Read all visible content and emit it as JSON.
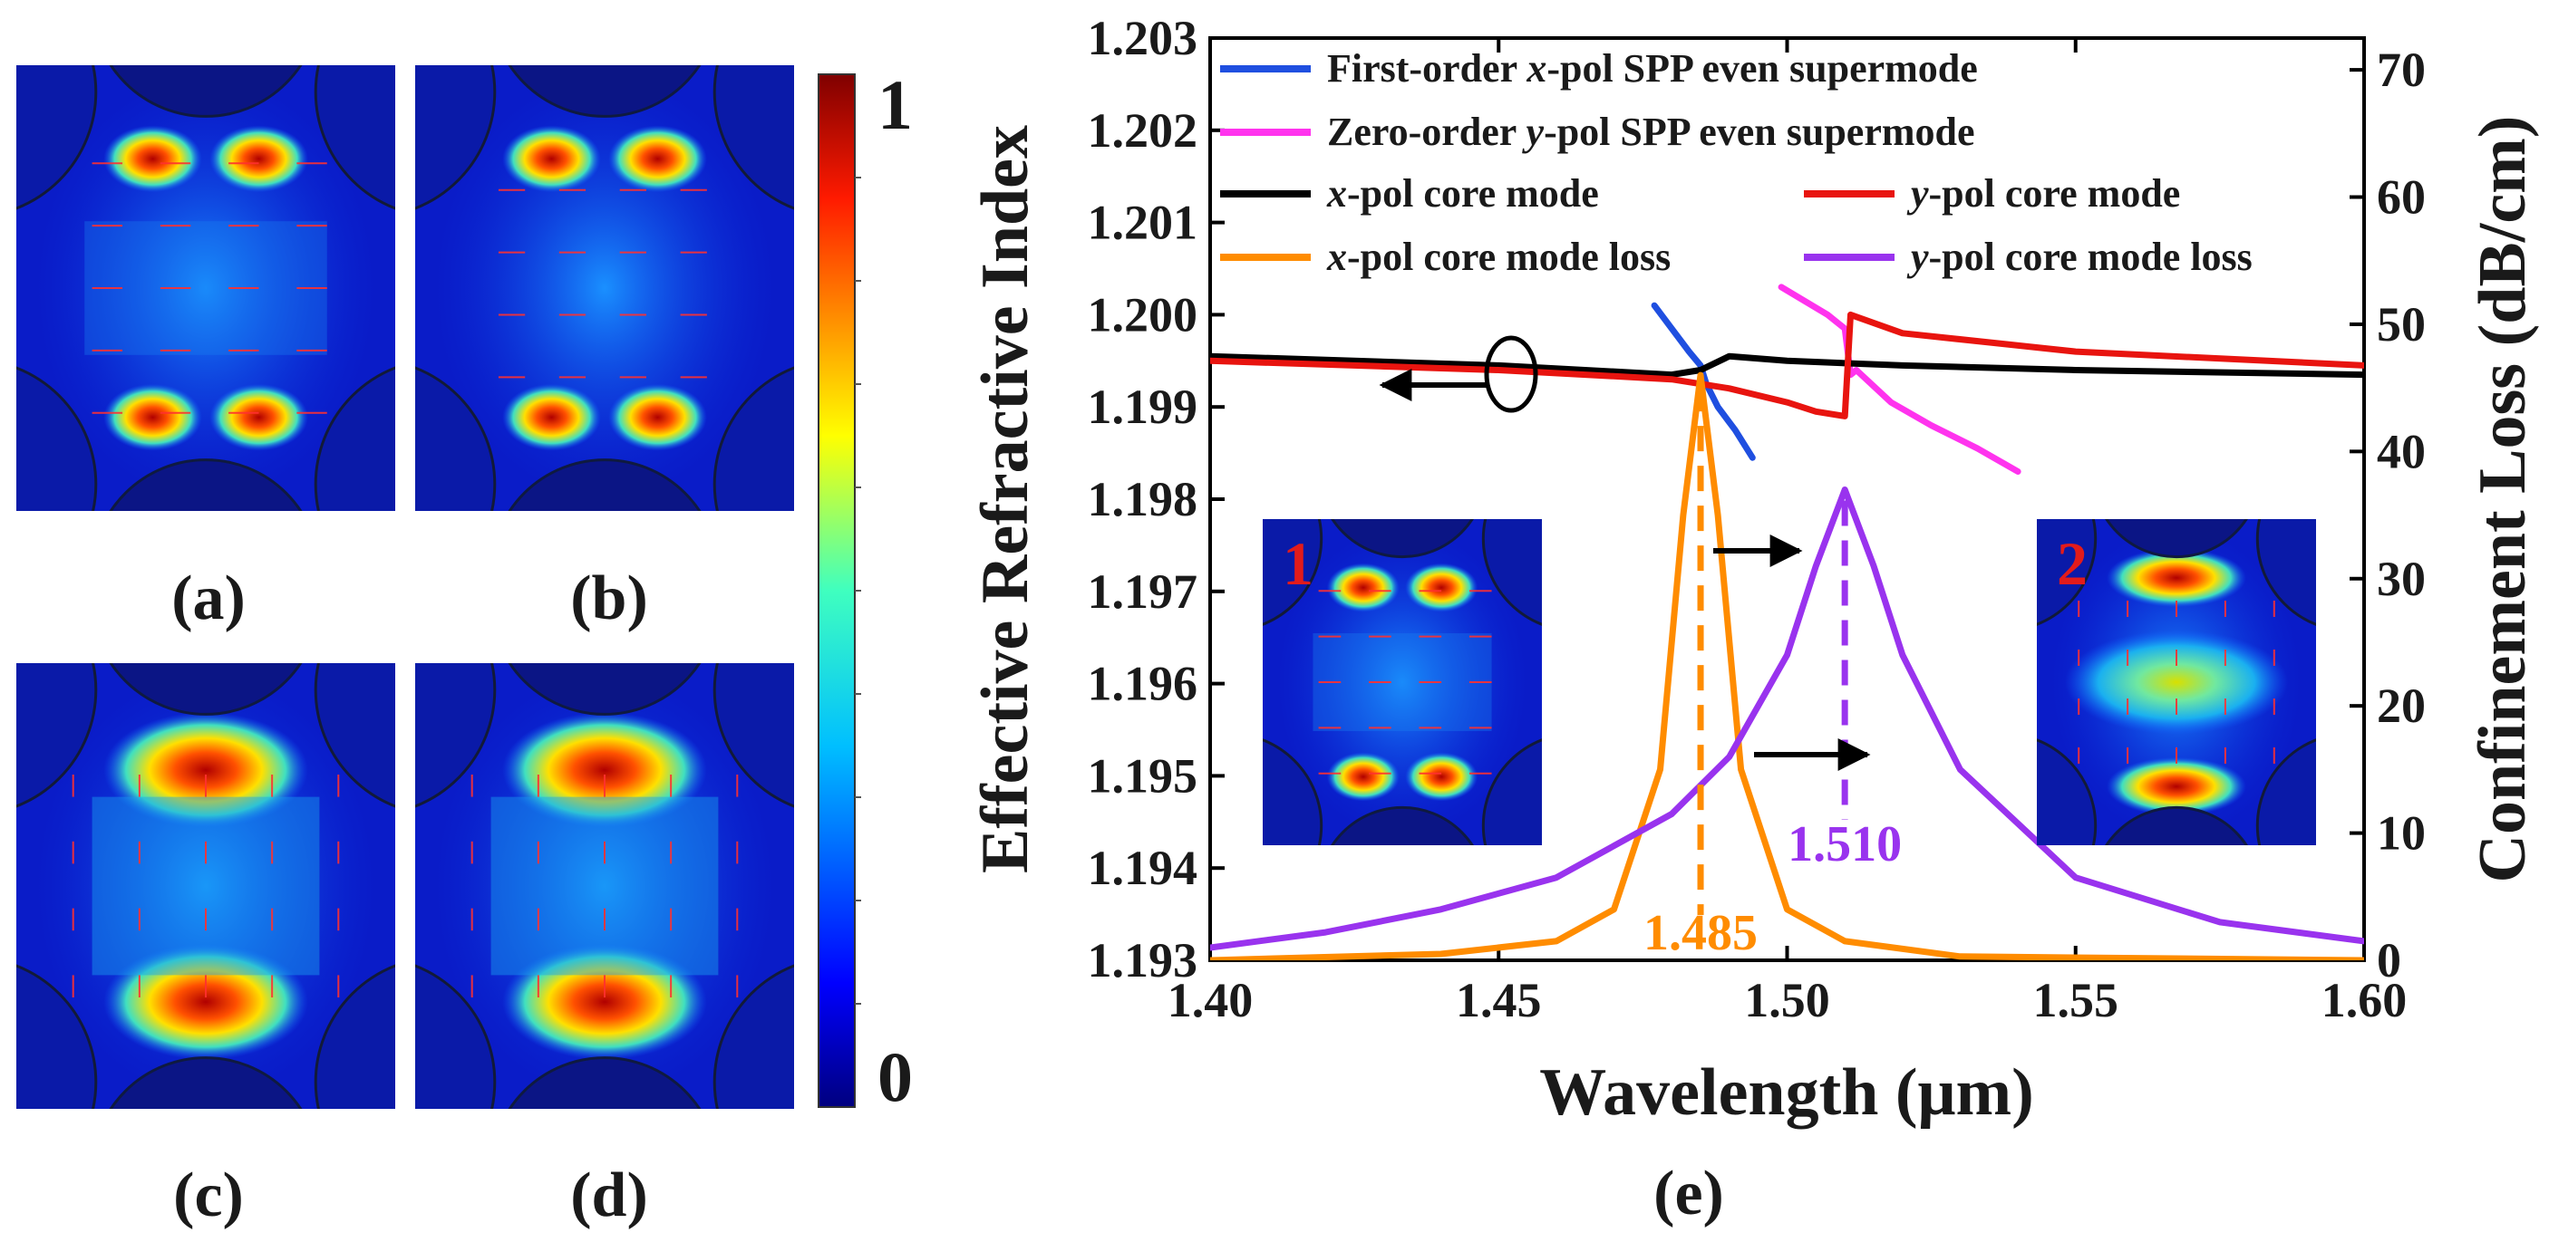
{
  "panels": [
    {
      "label": "(a)",
      "pattern": "x-pol-core"
    },
    {
      "label": "(b)",
      "pattern": "y-pol-core"
    },
    {
      "label": "(c)",
      "pattern": "spp-even"
    },
    {
      "label": "(d)",
      "pattern": "spp-zero"
    }
  ],
  "colorbar": {
    "max_label": "1",
    "min_label": "0"
  },
  "chart_data": {
    "type": "line",
    "panel_label": "(e)",
    "xlabel": "Wavelength (μm)",
    "ylabel_left": "Effective Refractive Index",
    "ylabel_right": "Confinement Loss (dB/cm)",
    "xlim": [
      1.4,
      1.6
    ],
    "ylim_left": [
      1.193,
      1.203
    ],
    "ylim_right": [
      0,
      72.5
    ],
    "x_ticks": [
      "1.40",
      "1.45",
      "1.50",
      "1.55",
      "1.60"
    ],
    "y_left_ticks": [
      "1.193",
      "1.194",
      "1.195",
      "1.196",
      "1.197",
      "1.198",
      "1.199",
      "1.200",
      "1.201",
      "1.202",
      "1.203"
    ],
    "y_right_ticks": [
      "0",
      "10",
      "20",
      "30",
      "40",
      "50",
      "60",
      "70"
    ],
    "legend": [
      {
        "pre": "First-order ",
        "ital": "x",
        "post": "-pol SPP even supermode",
        "color": "#1f4fe0"
      },
      {
        "pre": "Zero-order ",
        "ital": "y",
        "post": "-pol SPP even supermode",
        "color": "#ff33ee"
      },
      {
        "pre": "",
        "ital": "x",
        "post": "-pol core mode",
        "color": "#000000"
      },
      {
        "pre": "",
        "ital": "y",
        "post": "-pol core mode",
        "color": "#e8140f"
      },
      {
        "pre": "",
        "ital": "x",
        "post": "-pol core mode loss",
        "color": "#ff8c00"
      },
      {
        "pre": "",
        "ital": "y",
        "post": "-pol core mode loss",
        "color": "#9933ee"
      }
    ],
    "series": [
      {
        "name": "First-order x-pol SPP even supermode",
        "axis": "left",
        "color": "#1f4fe0",
        "x": [
          1.477,
          1.48,
          1.483,
          1.485,
          1.486,
          1.488,
          1.491,
          1.494
        ],
        "y": [
          1.2001,
          1.19985,
          1.1996,
          1.19945,
          1.19925,
          1.199,
          1.19875,
          1.19845
        ]
      },
      {
        "name": "Zero-order y-pol SPP even supermode",
        "axis": "left",
        "color": "#ff33ee",
        "x": [
          1.499,
          1.503,
          1.507,
          1.51,
          1.511,
          1.512,
          1.518,
          1.525,
          1.533,
          1.54
        ],
        "y": [
          1.2003,
          1.20015,
          1.2,
          1.19985,
          1.19935,
          1.1994,
          1.19905,
          1.1988,
          1.19855,
          1.1983
        ]
      },
      {
        "name": "x-pol core mode",
        "axis": "left",
        "color": "#000000",
        "x": [
          1.4,
          1.45,
          1.48,
          1.485,
          1.49,
          1.5,
          1.52,
          1.55,
          1.6
        ],
        "y": [
          1.19955,
          1.19945,
          1.19935,
          1.1994,
          1.19955,
          1.1995,
          1.19945,
          1.1994,
          1.19935
        ]
      },
      {
        "name": "y-pol core mode",
        "axis": "left",
        "color": "#e8140f",
        "x": [
          1.4,
          1.45,
          1.48,
          1.49,
          1.5,
          1.505,
          1.51,
          1.511,
          1.52,
          1.55,
          1.6
        ],
        "y": [
          1.1995,
          1.1994,
          1.1993,
          1.1992,
          1.19905,
          1.19895,
          1.1989,
          1.2,
          1.1998,
          1.1996,
          1.19945
        ]
      },
      {
        "name": "x-pol core mode loss",
        "axis": "right",
        "color": "#ff8c00",
        "x": [
          1.4,
          1.44,
          1.46,
          1.47,
          1.478,
          1.482,
          1.485,
          1.488,
          1.492,
          1.5,
          1.51,
          1.53,
          1.6
        ],
        "y": [
          0,
          0.5,
          1.5,
          4,
          15,
          35,
          46,
          35,
          15,
          4,
          1.5,
          0.3,
          0
        ]
      },
      {
        "name": "y-pol core mode loss",
        "axis": "right",
        "color": "#9933ee",
        "x": [
          1.4,
          1.42,
          1.44,
          1.46,
          1.48,
          1.49,
          1.5,
          1.505,
          1.51,
          1.515,
          1.52,
          1.53,
          1.55,
          1.575,
          1.6
        ],
        "y": [
          1,
          2.2,
          4,
          6.5,
          11.5,
          16,
          24,
          31,
          37,
          31,
          24,
          15,
          6.5,
          3,
          1.5
        ]
      }
    ],
    "annotations": [
      {
        "text": "1.485",
        "x": 1.485,
        "color": "#ff8c00"
      },
      {
        "text": "1.510",
        "x": 1.51,
        "color": "#9933ee"
      }
    ],
    "insets": [
      {
        "label": "1",
        "pattern": "x-pol-core"
      },
      {
        "label": "2",
        "pattern": "y-pol-core-bright"
      }
    ]
  }
}
